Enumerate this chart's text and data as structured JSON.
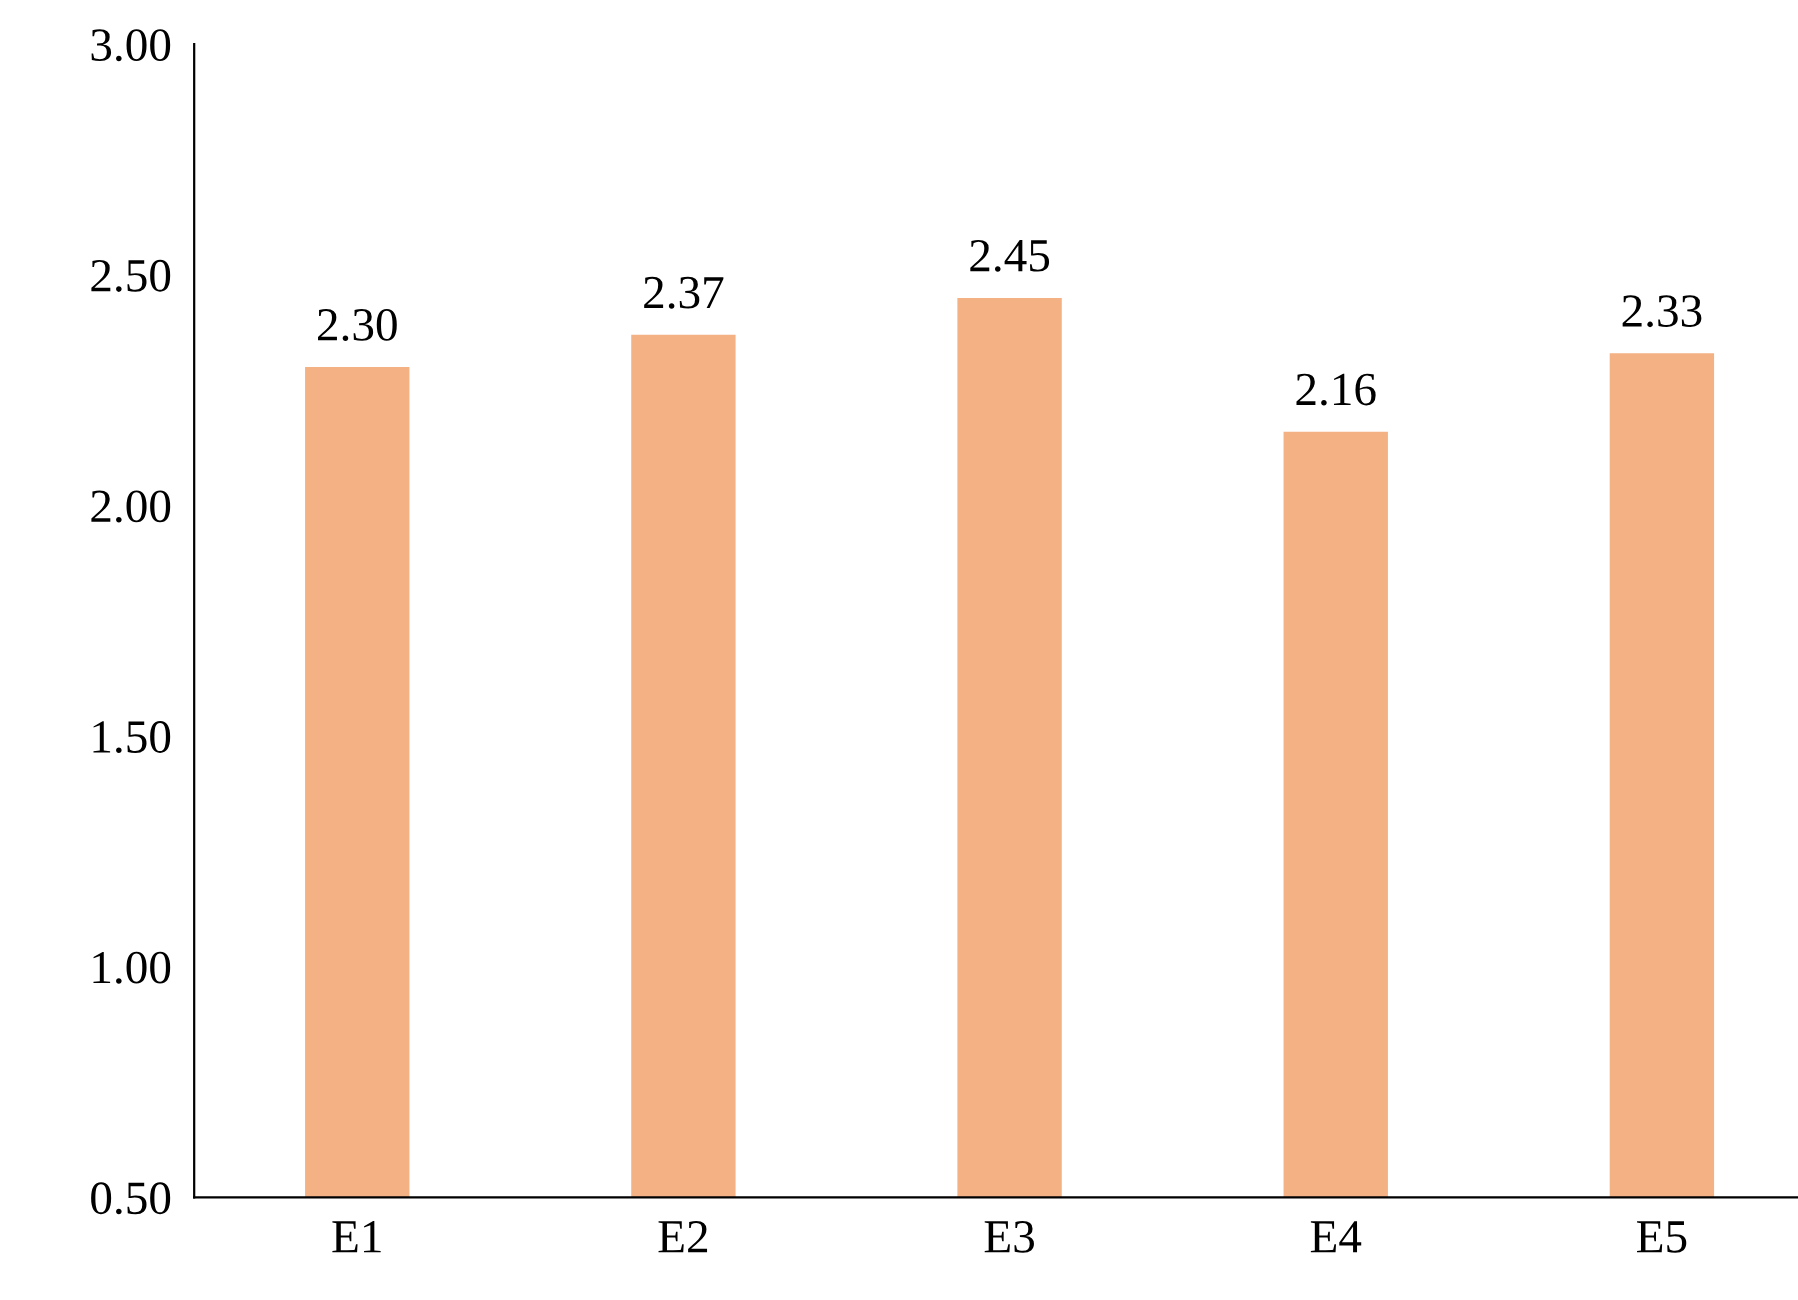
{
  "chart_data": {
    "type": "bar",
    "categories": [
      "E1",
      "E2",
      "E3",
      "E4",
      "E5"
    ],
    "values": [
      2.3,
      2.37,
      2.45,
      2.16,
      2.33
    ],
    "color": "#f4b183",
    "ylim": [
      0.5,
      3.0
    ],
    "yticks": [
      {
        "value": 0.5,
        "label": "0.50"
      },
      {
        "value": 1.0,
        "label": "1.00"
      },
      {
        "value": 1.5,
        "label": "1.50"
      },
      {
        "value": 2.0,
        "label": "2.00"
      },
      {
        "value": 2.5,
        "label": "2.50"
      },
      {
        "value": 3.0,
        "label": "3.00"
      }
    ],
    "value_labels": [
      "2.30",
      "2.37",
      "2.45",
      "2.16",
      "2.33"
    ],
    "grid": false,
    "legend": false
  }
}
